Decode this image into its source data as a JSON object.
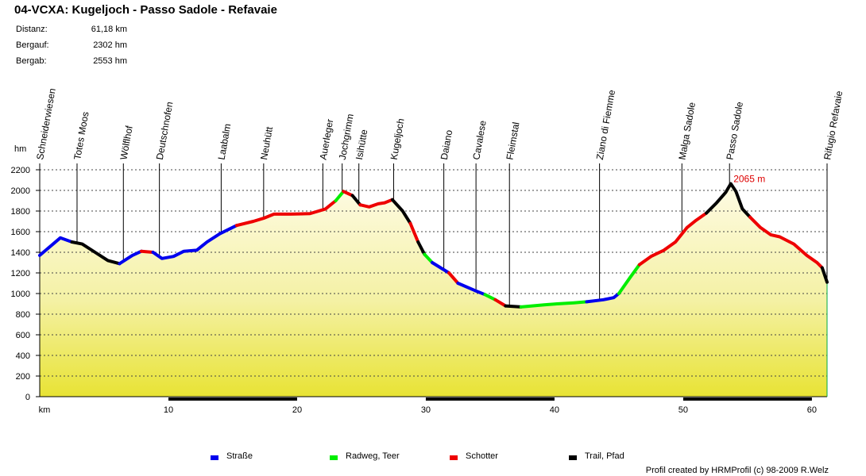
{
  "title": "04-VCXA: Kugeljoch - Passo Sadole - Refavaie",
  "stats": [
    {
      "label": "Distanz:",
      "value": "61,18 km"
    },
    {
      "label": "Bergauf:",
      "value": "2302 hm"
    },
    {
      "label": "Bergab:",
      "value": "2553 hm"
    }
  ],
  "legend": [
    {
      "label": "Straße",
      "color": "#0000ee"
    },
    {
      "label": "Radweg, Teer",
      "color": "#00ee00"
    },
    {
      "label": "Schotter",
      "color": "#ee0000"
    },
    {
      "label": "Trail, Pfad",
      "color": "#000000"
    }
  ],
  "credit": "Profil created by HRMProfil (c) 98-2009 R.Welz",
  "chart_data": {
    "type": "area",
    "ylabel": "hm",
    "xlabel": "km",
    "ylim": [
      0,
      2200
    ],
    "xlim": [
      0,
      61.18
    ],
    "y_ticks": [
      0,
      200,
      400,
      600,
      800,
      1000,
      1200,
      1400,
      1600,
      1800,
      2000,
      2200
    ],
    "x_ticks": [
      10,
      20,
      30,
      40,
      50,
      60
    ],
    "grid": true,
    "peak_annotation": {
      "x": 53.6,
      "y": 2065,
      "label": "2065 m"
    },
    "waypoints": [
      {
        "name": "Schneiderwiesen",
        "km": 0
      },
      {
        "name": "Totes Moos",
        "km": 2.9
      },
      {
        "name": "Wölflhof",
        "km": 6.5
      },
      {
        "name": "Deutschnofen",
        "km": 9.3
      },
      {
        "name": "Laabalm",
        "km": 14.1
      },
      {
        "name": "Neuhütt",
        "km": 17.4
      },
      {
        "name": "Auerleger",
        "km": 22.0
      },
      {
        "name": "Jochgrimm",
        "km": 23.5
      },
      {
        "name": "Isihütte",
        "km": 24.8
      },
      {
        "name": "Kugeljoch",
        "km": 27.5
      },
      {
        "name": "Daiano",
        "km": 31.4
      },
      {
        "name": "Cavalese",
        "km": 33.9
      },
      {
        "name": "Fleimstal",
        "km": 36.5
      },
      {
        "name": "Ziano di Fiemme",
        "km": 43.5
      },
      {
        "name": "Malga Sadole",
        "km": 49.9
      },
      {
        "name": "Passo Sadole",
        "km": 53.6
      },
      {
        "name": "Rifugio Refavaie",
        "km": 61.18
      }
    ],
    "series": [
      {
        "surface": "Straße",
        "points": [
          [
            0,
            1370
          ],
          [
            1.6,
            1540
          ],
          [
            2.5,
            1500
          ]
        ]
      },
      {
        "surface": "Trail, Pfad",
        "points": [
          [
            2.5,
            1500
          ],
          [
            3.3,
            1480
          ],
          [
            4.3,
            1400
          ],
          [
            5.3,
            1320
          ],
          [
            6.2,
            1290
          ]
        ]
      },
      {
        "surface": "Straße",
        "points": [
          [
            6.2,
            1290
          ],
          [
            7.2,
            1370
          ],
          [
            7.9,
            1410
          ]
        ]
      },
      {
        "surface": "Schotter",
        "points": [
          [
            7.9,
            1410
          ],
          [
            8.8,
            1400
          ]
        ]
      },
      {
        "surface": "Straße",
        "points": [
          [
            8.8,
            1400
          ],
          [
            9.5,
            1340
          ],
          [
            10.4,
            1360
          ],
          [
            11.2,
            1410
          ],
          [
            12.2,
            1420
          ],
          [
            13.0,
            1500
          ],
          [
            14.0,
            1580
          ],
          [
            15.3,
            1660
          ]
        ]
      },
      {
        "surface": "Schotter",
        "points": [
          [
            15.3,
            1660
          ],
          [
            16.6,
            1700
          ],
          [
            17.4,
            1730
          ],
          [
            18.2,
            1770
          ],
          [
            19.5,
            1770
          ],
          [
            21.0,
            1775
          ],
          [
            22.2,
            1820
          ],
          [
            23.0,
            1900
          ]
        ]
      },
      {
        "surface": "Radweg, Teer",
        "points": [
          [
            23.0,
            1900
          ],
          [
            23.6,
            1990
          ]
        ]
      },
      {
        "surface": "Schotter",
        "points": [
          [
            23.6,
            1990
          ],
          [
            24.3,
            1950
          ]
        ]
      },
      {
        "surface": "Trail, Pfad",
        "points": [
          [
            24.3,
            1950
          ],
          [
            24.9,
            1860
          ]
        ]
      },
      {
        "surface": "Schotter",
        "points": [
          [
            24.9,
            1860
          ],
          [
            25.6,
            1840
          ],
          [
            26.3,
            1870
          ],
          [
            26.8,
            1880
          ],
          [
            27.4,
            1910
          ]
        ]
      },
      {
        "surface": "Trail, Pfad",
        "points": [
          [
            27.4,
            1910
          ],
          [
            28.2,
            1800
          ],
          [
            28.8,
            1680
          ]
        ]
      },
      {
        "surface": "Schotter",
        "points": [
          [
            28.8,
            1680
          ],
          [
            29.4,
            1500
          ]
        ]
      },
      {
        "surface": "Trail, Pfad",
        "points": [
          [
            29.4,
            1500
          ],
          [
            29.9,
            1380
          ]
        ]
      },
      {
        "surface": "Radweg, Teer",
        "points": [
          [
            29.9,
            1380
          ],
          [
            30.5,
            1300
          ]
        ]
      },
      {
        "surface": "Straße",
        "points": [
          [
            30.5,
            1300
          ],
          [
            31.8,
            1200
          ]
        ]
      },
      {
        "surface": "Schotter",
        "points": [
          [
            31.8,
            1200
          ],
          [
            32.5,
            1100
          ]
        ]
      },
      {
        "surface": "Straße",
        "points": [
          [
            32.5,
            1100
          ],
          [
            33.8,
            1030
          ],
          [
            34.6,
            990
          ]
        ]
      },
      {
        "surface": "Radweg, Teer",
        "points": [
          [
            34.6,
            990
          ],
          [
            35.4,
            940
          ]
        ]
      },
      {
        "surface": "Schotter",
        "points": [
          [
            35.4,
            940
          ],
          [
            36.2,
            880
          ]
        ]
      },
      {
        "surface": "Trail, Pfad",
        "points": [
          [
            36.2,
            880
          ],
          [
            37.4,
            870
          ]
        ]
      },
      {
        "surface": "Radweg, Teer",
        "points": [
          [
            37.4,
            870
          ],
          [
            39.2,
            890
          ],
          [
            40.2,
            900
          ],
          [
            41.5,
            910
          ],
          [
            42.5,
            920
          ]
        ]
      },
      {
        "surface": "Straße",
        "points": [
          [
            42.5,
            920
          ],
          [
            43.8,
            940
          ],
          [
            44.6,
            960
          ],
          [
            45.0,
            1000
          ]
        ]
      },
      {
        "surface": "Radweg, Teer",
        "points": [
          [
            45.0,
            1000
          ],
          [
            45.9,
            1160
          ],
          [
            46.6,
            1280
          ]
        ]
      },
      {
        "surface": "Schotter",
        "points": [
          [
            46.6,
            1280
          ],
          [
            47.5,
            1360
          ],
          [
            48.5,
            1420
          ],
          [
            49.4,
            1500
          ],
          [
            50.3,
            1640
          ],
          [
            51.0,
            1710
          ],
          [
            51.8,
            1780
          ]
        ]
      },
      {
        "surface": "Trail, Pfad",
        "points": [
          [
            51.8,
            1780
          ],
          [
            52.6,
            1880
          ],
          [
            53.3,
            1980
          ],
          [
            53.7,
            2065
          ],
          [
            54.1,
            1990
          ],
          [
            54.6,
            1820
          ],
          [
            55.2,
            1740
          ]
        ]
      },
      {
        "surface": "Schotter",
        "points": [
          [
            55.2,
            1740
          ],
          [
            56.0,
            1640
          ],
          [
            56.8,
            1570
          ],
          [
            57.5,
            1550
          ],
          [
            58.6,
            1480
          ],
          [
            59.6,
            1370
          ],
          [
            60.4,
            1300
          ],
          [
            60.8,
            1250
          ]
        ]
      },
      {
        "surface": "Trail, Pfad",
        "points": [
          [
            60.8,
            1250
          ],
          [
            61.18,
            1110
          ]
        ]
      }
    ]
  }
}
